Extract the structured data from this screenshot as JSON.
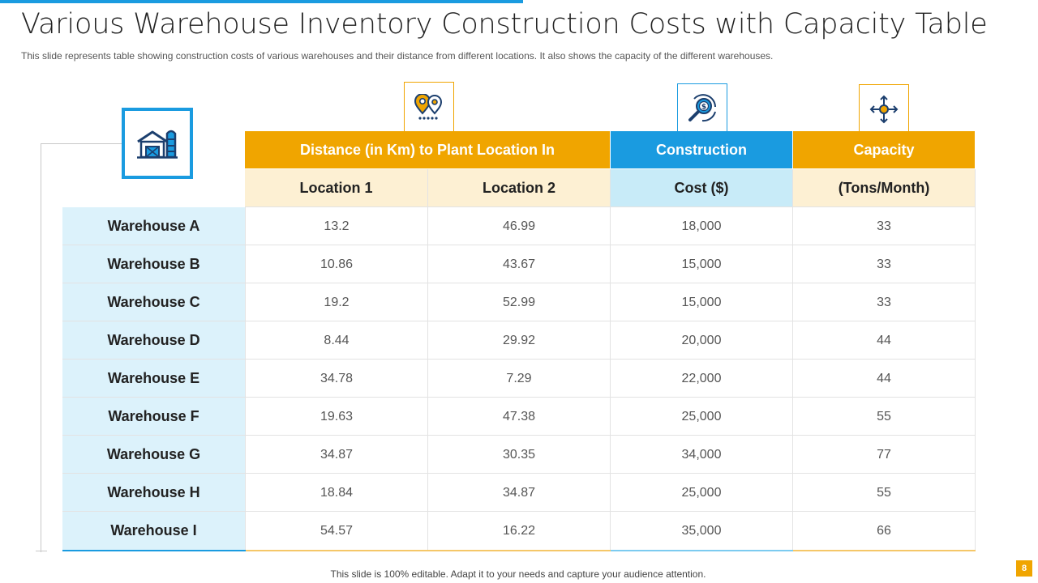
{
  "slide": {
    "title": "Various Warehouse Inventory Construction Costs with Capacity Table",
    "subtitle": "This slide represents table showing construction costs of various  warehouses  and their distance from different  locations. It also shows the capacity of the different  warehouses.",
    "footer": "This slide is 100% editable. Adapt it to your  needs and capture your audience attention.",
    "page_number": "8"
  },
  "icons": {
    "warehouse": "warehouse-icon",
    "location": "location-pins-icon",
    "cost": "cost-search-icon",
    "capacity": "capacity-arrows-icon"
  },
  "colors": {
    "orange": "#f0a500",
    "blue": "#1a9be0",
    "cream": "#fdf0d3",
    "light_blue": "#c8ebf8",
    "row_label_bg": "#dcf2fb"
  },
  "table": {
    "header_top": {
      "distance": "Distance (in Km) to Plant Location In",
      "construction": "Construction",
      "capacity": "Capacity"
    },
    "header_sub": {
      "location1": "Location 1",
      "location2": "Location 2",
      "cost": "Cost ($)",
      "tons": "(Tons/Month)"
    },
    "rows": [
      {
        "name": "Warehouse A",
        "loc1": "13.2",
        "loc2": "46.99",
        "cost": "18,000",
        "capacity": "33"
      },
      {
        "name": "Warehouse B",
        "loc1": "10.86",
        "loc2": "43.67",
        "cost": "15,000",
        "capacity": "33"
      },
      {
        "name": "Warehouse C",
        "loc1": "19.2",
        "loc2": "52.99",
        "cost": "15,000",
        "capacity": "33"
      },
      {
        "name": "Warehouse D",
        "loc1": "8.44",
        "loc2": "29.92",
        "cost": "20,000",
        "capacity": "44"
      },
      {
        "name": "Warehouse E",
        "loc1": "34.78",
        "loc2": "7.29",
        "cost": "22,000",
        "capacity": "44"
      },
      {
        "name": "Warehouse F",
        "loc1": "19.63",
        "loc2": "47.38",
        "cost": "25,000",
        "capacity": "55"
      },
      {
        "name": "Warehouse G",
        "loc1": "34.87",
        "loc2": "30.35",
        "cost": "34,000",
        "capacity": "77"
      },
      {
        "name": "Warehouse H",
        "loc1": "18.84",
        "loc2": "34.87",
        "cost": "25,000",
        "capacity": "55"
      },
      {
        "name": "Warehouse I",
        "loc1": "54.57",
        "loc2": "16.22",
        "cost": "35,000",
        "capacity": "66"
      }
    ]
  }
}
